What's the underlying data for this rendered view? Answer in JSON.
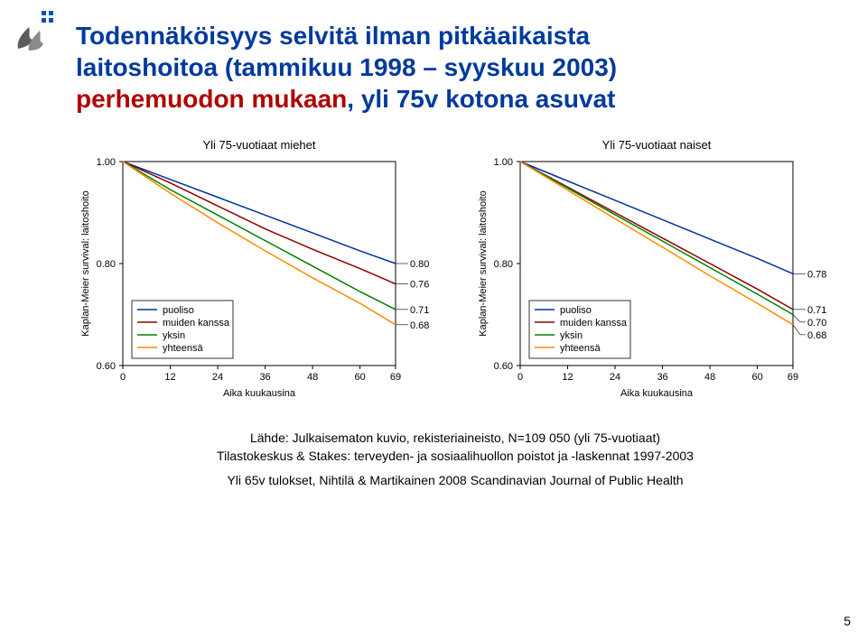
{
  "title_line1": "Todennäköisyys selvitä ilman pitkäaikaista",
  "title_line2_a": "laitoshoitoa (tammikuu 1998 – syyskuu 2003)",
  "title_line3_a": "perhemuodon mukaan",
  "title_line3_b": ", yli 75v kotona asuvat",
  "page_number": "5",
  "footer": {
    "l1": "Lähde: Julkaisematon kuvio, rekisteriaineisto, N=109 050 (yli 75-vuotiaat)",
    "l2": "Tilastokeskus & Stakes: terveyden- ja sosiaalihuollon poistot ja -laskennat 1997-2003",
    "l3": "Yli 65v tulokset, Nihtilä & Martikainen 2008 Scandinavian Journal of Public Health"
  },
  "charts": [
    {
      "title": "Yli 75-vuotiaat miehet",
      "ylabel": "Kaplan-Meier survival: laitoshoito",
      "xlabel": "Aika kuukausina",
      "ylim": [
        0.6,
        1.0
      ],
      "yticks": [
        0.6,
        0.8,
        1.0
      ],
      "xlim": [
        0,
        69
      ],
      "xticks": [
        0,
        12,
        24,
        36,
        48,
        60,
        69
      ],
      "legend_items": [
        "puoliso",
        "muiden kanssa",
        "yksin",
        "yhteensä"
      ],
      "series": [
        {
          "label": "puoliso",
          "color": "#003399",
          "end_label": "0.80",
          "data": [
            [
              0,
              1.0
            ],
            [
              12,
              0.965
            ],
            [
              24,
              0.93
            ],
            [
              36,
              0.895
            ],
            [
              48,
              0.86
            ],
            [
              60,
              0.825
            ],
            [
              69,
              0.8
            ]
          ]
        },
        {
          "label": "muiden kanssa",
          "color": "#8B0000",
          "end_label": "0.76",
          "data": [
            [
              0,
              1.0
            ],
            [
              12,
              0.958
            ],
            [
              24,
              0.913
            ],
            [
              36,
              0.868
            ],
            [
              48,
              0.828
            ],
            [
              60,
              0.79
            ],
            [
              69,
              0.76
            ]
          ]
        },
        {
          "label": "yksin",
          "color": "#008000",
          "end_label": "0.71",
          "data": [
            [
              0,
              1.0
            ],
            [
              12,
              0.945
            ],
            [
              24,
              0.895
            ],
            [
              36,
              0.845
            ],
            [
              48,
              0.795
            ],
            [
              60,
              0.745
            ],
            [
              69,
              0.71
            ]
          ]
        },
        {
          "label": "yhteensä",
          "color": "#FF8C00",
          "end_label": "0.68",
          "data": [
            [
              0,
              1.0
            ],
            [
              12,
              0.938
            ],
            [
              24,
              0.88
            ],
            [
              36,
              0.825
            ],
            [
              48,
              0.772
            ],
            [
              60,
              0.722
            ],
            [
              69,
              0.68
            ]
          ]
        }
      ],
      "plot_bg": "#ffffff",
      "grid_color": "#d0d0d0",
      "axis_color": "#000000",
      "title_fontsize": 13,
      "tick_fontsize": 11,
      "label_fontsize": 11,
      "legend_fontsize": 11,
      "line_width": 1.5
    },
    {
      "title": "Yli 75-vuotiaat naiset",
      "ylabel": "Kaplan-Meier survival: laitoshoito",
      "xlabel": "Aika kuukausina",
      "ylim": [
        0.6,
        1.0
      ],
      "yticks": [
        0.6,
        0.8,
        1.0
      ],
      "xlim": [
        0,
        69
      ],
      "xticks": [
        0,
        12,
        24,
        36,
        48,
        60,
        69
      ],
      "legend_items": [
        "puoliso",
        "muiden kanssa",
        "yksin",
        "yhteensä"
      ],
      "series": [
        {
          "label": "puoliso",
          "color": "#003399",
          "end_label": "0.78",
          "data": [
            [
              0,
              1.0
            ],
            [
              12,
              0.962
            ],
            [
              24,
              0.924
            ],
            [
              36,
              0.886
            ],
            [
              48,
              0.848
            ],
            [
              60,
              0.81
            ],
            [
              69,
              0.78
            ]
          ]
        },
        {
          "label": "muiden kanssa",
          "color": "#8B0000",
          "end_label": "0.71",
          "data": [
            [
              0,
              1.0
            ],
            [
              12,
              0.95
            ],
            [
              24,
              0.9
            ],
            [
              36,
              0.85
            ],
            [
              48,
              0.8
            ],
            [
              60,
              0.75
            ],
            [
              69,
              0.71
            ]
          ]
        },
        {
          "label": "yksin",
          "color": "#008000",
          "end_label": "0.70",
          "data": [
            [
              0,
              1.0
            ],
            [
              12,
              0.948
            ],
            [
              24,
              0.896
            ],
            [
              36,
              0.844
            ],
            [
              48,
              0.792
            ],
            [
              60,
              0.74
            ],
            [
              69,
              0.7
            ]
          ]
        },
        {
          "label": "yhteensä",
          "color": "#FF8C00",
          "end_label": "0.68",
          "data": [
            [
              0,
              1.0
            ],
            [
              12,
              0.944
            ],
            [
              24,
              0.888
            ],
            [
              36,
              0.832
            ],
            [
              48,
              0.776
            ],
            [
              60,
              0.722
            ],
            [
              69,
              0.68
            ]
          ]
        }
      ],
      "plot_bg": "#ffffff",
      "grid_color": "#d0d0d0",
      "axis_color": "#000000",
      "title_fontsize": 13,
      "tick_fontsize": 11,
      "label_fontsize": 11,
      "legend_fontsize": 11,
      "line_width": 1.5
    }
  ],
  "logo": {
    "flame_color1": "#5a5a5a",
    "flame_color2": "#8a8a8a",
    "dot_color": "#0055a5"
  }
}
